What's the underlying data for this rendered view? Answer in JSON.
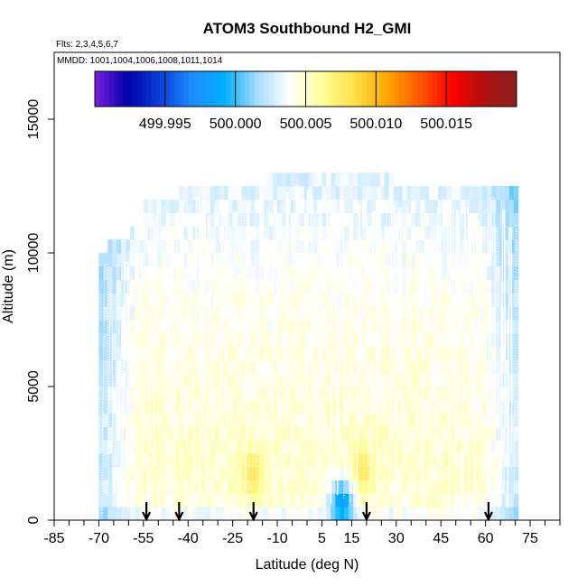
{
  "chart_data": {
    "type": "heatmap",
    "title": "ATOM3 Southbound H2_GMI",
    "subtitle_flights": "Flts: 2,3,4,5,6,7",
    "subtitle_dates": "MMDD: 1001,1004,1006,1008,1011,1014",
    "xlabel": "Latitude (deg N)",
    "ylabel": "Altitude (m)",
    "xlim": [
      -85,
      85
    ],
    "ylim": [
      0,
      17500
    ],
    "x_tick_values": [
      -85,
      -70,
      -55,
      -40,
      -25,
      -10,
      5,
      15,
      30,
      45,
      60,
      75
    ],
    "x_tick_labels": [
      "-85",
      "-70",
      "-55",
      "-40",
      "-25",
      "-10",
      "5",
      "15",
      "30",
      "45",
      "60",
      "75"
    ],
    "x_minor_ticks": [
      -80,
      -75,
      -65,
      -60,
      -50,
      -45,
      -35,
      -30,
      -20,
      -15,
      -5,
      0,
      10,
      20,
      25,
      35,
      40,
      50,
      55,
      65,
      70,
      80,
      85
    ],
    "y_tick_values": [
      0,
      5000,
      10000,
      15000
    ],
    "y_tick_labels": [
      "0",
      "5000",
      "10000",
      "15000"
    ],
    "colorbar": {
      "min": 499.99,
      "max": 500.02,
      "tick_values": [
        499.995,
        500.0,
        500.005,
        500.01,
        500.015
      ],
      "tick_labels": [
        "499.995",
        "500.000",
        "500.005",
        "500.010",
        "500.015"
      ],
      "colors": [
        "#7a1fe0",
        "#0000a8",
        "#0a3fd6",
        "#1e8cff",
        "#00b2ff",
        "#a7dcff",
        "#ffffff",
        "#ffff9a",
        "#ffe14a",
        "#ffa500",
        "#ff5a00",
        "#ff0000",
        "#b01010",
        "#8b2020"
      ]
    },
    "column_tops": [
      {
        "lat": -70,
        "top": 10000
      },
      {
        "lat": -67,
        "top": 10300
      },
      {
        "lat": -64,
        "top": 10500
      },
      {
        "lat": -60,
        "top": 11000
      },
      {
        "lat": -55,
        "top": 11800
      },
      {
        "lat": -50,
        "top": 12000
      },
      {
        "lat": -45,
        "top": 12400
      },
      {
        "lat": -30,
        "top": 12400
      },
      {
        "lat": -17,
        "top": 12400
      },
      {
        "lat": -14,
        "top": 12900
      },
      {
        "lat": 25,
        "top": 12900
      },
      {
        "lat": 28,
        "top": 12400
      },
      {
        "lat": 67,
        "top": 12400
      },
      {
        "lat": 70,
        "top": 11500
      }
    ],
    "profile_arrows_lat": [
      -54,
      -43,
      -18,
      20,
      61
    ],
    "hotspots": [
      {
        "lat": -19,
        "alt": 1500,
        "value": 500.008
      },
      {
        "lat": 18,
        "alt": 1600,
        "value": 500.008
      },
      {
        "lat": 11,
        "alt": 400,
        "value": 499.998
      }
    ]
  }
}
